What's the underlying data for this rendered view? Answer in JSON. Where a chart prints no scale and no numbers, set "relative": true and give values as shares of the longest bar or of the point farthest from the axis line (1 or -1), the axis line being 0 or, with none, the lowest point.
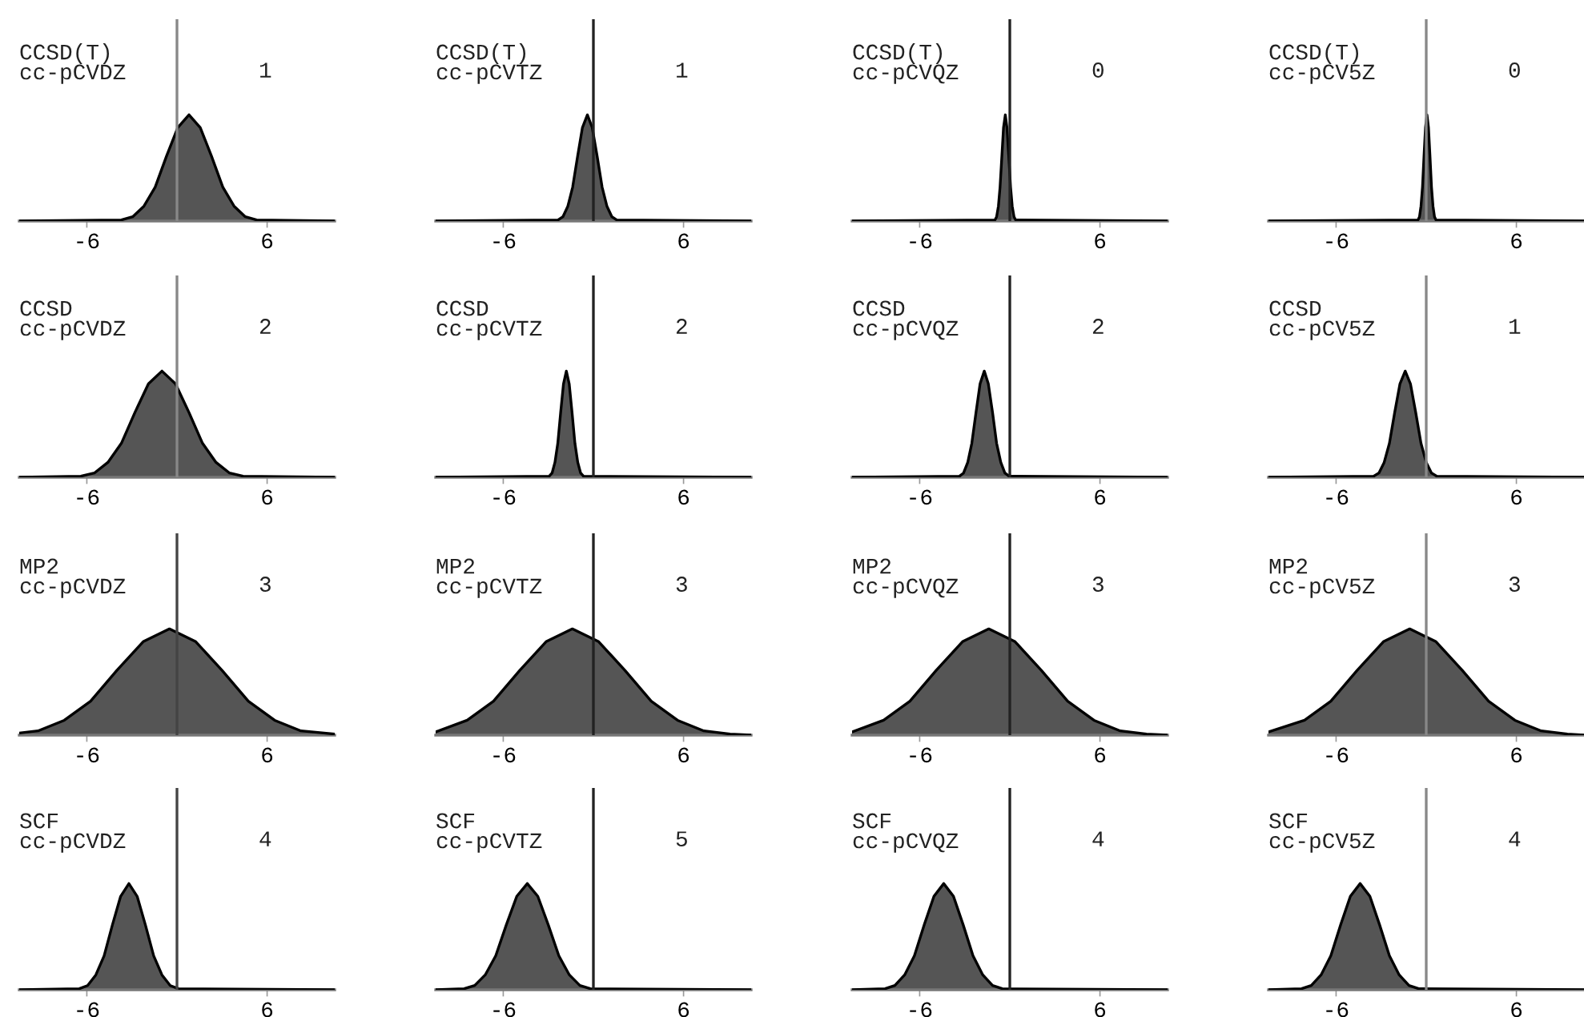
{
  "chart_data": [
    {
      "type": "area",
      "relative": true,
      "color": "#555555",
      "xlim": [
        -10.5,
        10.5
      ],
      "xticks": [
        -6,
        6
      ],
      "tick_labels": "x",
      "ref_lines": [
        {
          "axis": "x",
          "value": 0,
          "color": "#888888"
        }
      ],
      "annotations": [
        "CCSD(T)\ncc-pCVDZ",
        "1"
      ],
      "x": [
        -10.5,
        -3.7,
        -2.95,
        -2.2,
        -1.45,
        -0.7,
        0.05,
        0.8,
        1.55,
        2.3,
        3.05,
        3.8,
        4.55,
        5.3,
        10.5
      ],
      "values": [
        0,
        0.01,
        0.04,
        0.14,
        0.32,
        0.61,
        0.88,
        1,
        0.88,
        0.61,
        0.32,
        0.14,
        0.04,
        0.01,
        0
      ]
    },
    {
      "type": "area",
      "relative": true,
      "color": "#555555",
      "xlim": [
        -10.5,
        10.5
      ],
      "xticks": [
        -6,
        6
      ],
      "tick_labels": "x",
      "ref_lines": [
        {
          "axis": "x",
          "value": 0,
          "color": "#222222"
        }
      ],
      "annotations": [
        "CCSD(T)\ncc-pCVTZ",
        "1"
      ],
      "x": [
        -10.5,
        -2.35,
        -2.03,
        -1.7,
        -1.38,
        -1.05,
        -0.73,
        -0.4,
        -0.08,
        0.25,
        0.58,
        0.9,
        1.23,
        1.55,
        10.5
      ],
      "values": [
        0,
        0.01,
        0.04,
        0.14,
        0.32,
        0.61,
        0.88,
        1,
        0.88,
        0.61,
        0.32,
        0.14,
        0.04,
        0.01,
        0
      ]
    },
    {
      "type": "area",
      "relative": true,
      "color": "#555555",
      "xlim": [
        -10.5,
        10.5
      ],
      "xticks": [
        -6,
        6
      ],
      "tick_labels": "x",
      "ref_lines": [
        {
          "axis": "x",
          "value": 0,
          "color": "#222222"
        }
      ],
      "annotations": [
        "CCSD(T)\ncc-pCVQZ",
        "0"
      ],
      "x": [
        -10.5,
        -0.99,
        -0.88,
        -0.76,
        -0.65,
        -0.53,
        -0.42,
        -0.3,
        -0.19,
        -0.07,
        0.05,
        0.16,
        0.28,
        0.39,
        10.5
      ],
      "values": [
        0,
        0.01,
        0.04,
        0.14,
        0.32,
        0.61,
        0.88,
        1,
        0.88,
        0.61,
        0.32,
        0.14,
        0.04,
        0.01,
        0
      ]
    },
    {
      "type": "area",
      "relative": true,
      "color": "#555555",
      "xlim": [
        -10.5,
        10.5
      ],
      "xticks": [
        -6,
        6
      ],
      "tick_labels": "x",
      "ref_lines": [
        {
          "axis": "x",
          "value": 0,
          "color": "#888888"
        }
      ],
      "annotations": [
        "CCSD(T)\ncc-pCV5Z",
        "0"
      ],
      "x": [
        -10.5,
        -0.55,
        -0.45,
        -0.35,
        -0.25,
        -0.15,
        -0.05,
        0.05,
        0.15,
        0.25,
        0.35,
        0.45,
        0.55,
        0.65,
        10.5
      ],
      "values": [
        0,
        0.01,
        0.04,
        0.14,
        0.32,
        0.61,
        0.88,
        1,
        0.88,
        0.61,
        0.32,
        0.14,
        0.04,
        0.01,
        0
      ]
    },
    {
      "type": "area",
      "relative": true,
      "color": "#555555",
      "xlim": [
        -10.5,
        10.5
      ],
      "xticks": [
        -6,
        6
      ],
      "tick_labels": "x",
      "ref_lines": [
        {
          "axis": "x",
          "value": 0,
          "color": "#888888"
        }
      ],
      "annotations": [
        "CCSD\ncc-pCVDZ",
        "2"
      ],
      "x": [
        -10.5,
        -6.4,
        -5.5,
        -4.6,
        -3.7,
        -2.8,
        -1.9,
        -1.0,
        -0.1,
        0.8,
        1.7,
        2.6,
        3.5,
        4.4,
        10.5
      ],
      "values": [
        0,
        0.01,
        0.04,
        0.14,
        0.32,
        0.61,
        0.88,
        1,
        0.88,
        0.61,
        0.32,
        0.14,
        0.04,
        0.01,
        0
      ]
    },
    {
      "type": "area",
      "relative": true,
      "color": "#555555",
      "xlim": [
        -10.5,
        10.5
      ],
      "xticks": [
        -6,
        6
      ],
      "tick_labels": "x",
      "ref_lines": [
        {
          "axis": "x",
          "value": 0,
          "color": "#222222"
        }
      ],
      "annotations": [
        "CCSD\ncc-pCVTZ",
        "2"
      ],
      "x": [
        -10.5,
        -2.94,
        -2.75,
        -2.56,
        -2.37,
        -2.18,
        -1.99,
        -1.8,
        -1.61,
        -1.42,
        -1.23,
        -1.04,
        -0.85,
        -0.66,
        10.5
      ],
      "values": [
        0,
        0.01,
        0.04,
        0.14,
        0.32,
        0.61,
        0.88,
        1,
        0.88,
        0.61,
        0.32,
        0.14,
        0.04,
        0.01,
        0
      ]
    },
    {
      "type": "area",
      "relative": true,
      "color": "#555555",
      "xlim": [
        -10.5,
        10.5
      ],
      "xticks": [
        -6,
        6
      ],
      "tick_labels": "x",
      "ref_lines": [
        {
          "axis": "x",
          "value": 0,
          "color": "#222222"
        }
      ],
      "annotations": [
        "CCSD\ncc-pCVQZ",
        "2"
      ],
      "x": [
        -10.5,
        -3.35,
        -3.08,
        -2.8,
        -2.53,
        -2.25,
        -1.98,
        -1.7,
        -1.43,
        -1.15,
        -0.88,
        -0.6,
        -0.33,
        -0.05,
        10.5
      ],
      "values": [
        0,
        0.01,
        0.04,
        0.14,
        0.32,
        0.61,
        0.88,
        1,
        0.88,
        0.61,
        0.32,
        0.14,
        0.04,
        0.01,
        0
      ]
    },
    {
      "type": "area",
      "relative": true,
      "color": "#555555",
      "xlim": [
        -10.5,
        10.5
      ],
      "xticks": [
        -6,
        6
      ],
      "tick_labels": "x",
      "ref_lines": [
        {
          "axis": "x",
          "value": 0,
          "color": "#888888"
        }
      ],
      "annotations": [
        "CCSD\ncc-pCV5Z",
        "1"
      ],
      "x": [
        -10.5,
        -3.5,
        -3.15,
        -2.8,
        -2.45,
        -2.1,
        -1.75,
        -1.4,
        -1.05,
        -0.7,
        -0.35,
        0,
        0.35,
        0.7,
        10.5
      ],
      "values": [
        0,
        0.01,
        0.04,
        0.14,
        0.32,
        0.61,
        0.88,
        1,
        0.88,
        0.61,
        0.32,
        0.14,
        0.04,
        0.01,
        0
      ]
    },
    {
      "type": "area",
      "relative": true,
      "color": "#555555",
      "xlim": [
        -10.5,
        10.5
      ],
      "xticks": [
        -6,
        6
      ],
      "tick_labels": "x",
      "ref_lines": [
        {
          "axis": "x",
          "value": 0,
          "color": "#444444"
        }
      ],
      "annotations": [
        "MP2\ncc-pCVDZ",
        "3"
      ],
      "x": [
        -10.5,
        -9.25,
        -7.5,
        -5.75,
        -4.0,
        -2.25,
        -0.5,
        1.25,
        3.0,
        4.75,
        6.5,
        8.25,
        10.5
      ],
      "values": [
        0.02,
        0.04,
        0.14,
        0.32,
        0.61,
        0.88,
        1,
        0.88,
        0.61,
        0.32,
        0.14,
        0.04,
        0.01
      ]
    },
    {
      "type": "area",
      "relative": true,
      "color": "#555555",
      "xlim": [
        -10.5,
        10.5
      ],
      "xticks": [
        -6,
        6
      ],
      "tick_labels": "x",
      "ref_lines": [
        {
          "axis": "x",
          "value": 0,
          "color": "#222222"
        }
      ],
      "annotations": [
        "MP2\ncc-pCVTZ",
        "3"
      ],
      "x": [
        -10.5,
        -8.4,
        -6.65,
        -4.9,
        -3.15,
        -1.4,
        0.35,
        2.1,
        3.85,
        5.6,
        7.35,
        9.1,
        10.5
      ],
      "values": [
        0.03,
        0.14,
        0.32,
        0.61,
        0.88,
        1,
        0.88,
        0.61,
        0.32,
        0.14,
        0.04,
        0.01,
        0
      ]
    },
    {
      "type": "area",
      "relative": true,
      "color": "#555555",
      "xlim": [
        -10.5,
        10.5
      ],
      "xticks": [
        -6,
        6
      ],
      "tick_labels": "x",
      "ref_lines": [
        {
          "axis": "x",
          "value": 0,
          "color": "#222222"
        }
      ],
      "annotations": [
        "MP2\ncc-pCVQZ",
        "3"
      ],
      "x": [
        -10.5,
        -8.4,
        -6.65,
        -4.9,
        -3.15,
        -1.4,
        0.35,
        2.1,
        3.85,
        5.6,
        7.35,
        9.1,
        10.5
      ],
      "values": [
        0.03,
        0.14,
        0.32,
        0.61,
        0.88,
        1,
        0.88,
        0.61,
        0.32,
        0.14,
        0.04,
        0.01,
        0
      ]
    },
    {
      "type": "area",
      "relative": true,
      "color": "#555555",
      "xlim": [
        -10.5,
        10.5
      ],
      "xticks": [
        -6,
        6
      ],
      "tick_labels": "x",
      "ref_lines": [
        {
          "axis": "x",
          "value": 0,
          "color": "#888888"
        }
      ],
      "annotations": [
        "MP2\ncc-pCV5Z",
        "3"
      ],
      "x": [
        -10.5,
        -8.1,
        -6.35,
        -4.6,
        -2.85,
        -1.1,
        0.65,
        2.4,
        4.15,
        5.9,
        7.65,
        9.4,
        10.5
      ],
      "values": [
        0.03,
        0.14,
        0.32,
        0.61,
        0.88,
        1,
        0.88,
        0.61,
        0.32,
        0.14,
        0.04,
        0.01,
        0
      ]
    },
    {
      "type": "area",
      "relative": true,
      "color": "#555555",
      "xlim": [
        -10.5,
        10.5
      ],
      "xticks": [
        -6,
        6
      ],
      "tick_labels": "x",
      "ref_lines": [
        {
          "axis": "x",
          "value": 0,
          "color": "#444444"
        }
      ],
      "annotations": [
        "SCF\ncc-pCVDZ",
        "4"
      ],
      "x": [
        -10.5,
        -6.5,
        -5.95,
        -5.4,
        -4.85,
        -4.3,
        -3.75,
        -3.2,
        -2.65,
        -2.1,
        -1.55,
        -1.0,
        -0.45,
        0.1,
        10.5
      ],
      "values": [
        0,
        0.01,
        0.04,
        0.14,
        0.32,
        0.61,
        0.88,
        1,
        0.88,
        0.61,
        0.32,
        0.14,
        0.04,
        0.01,
        0
      ]
    },
    {
      "type": "area",
      "relative": true,
      "color": "#555555",
      "xlim": [
        -10.5,
        10.5
      ],
      "xticks": [
        -6,
        6
      ],
      "tick_labels": "x",
      "ref_lines": [
        {
          "axis": "x",
          "value": 0,
          "color": "#222222"
        }
      ],
      "annotations": [
        "SCF\ncc-pCVTZ",
        "5"
      ],
      "x": [
        -10.5,
        -8.6,
        -7.9,
        -7.2,
        -6.5,
        -5.8,
        -5.1,
        -4.4,
        -3.7,
        -3.0,
        -2.3,
        -1.6,
        -0.9,
        -0.2,
        10.5
      ],
      "values": [
        0,
        0.01,
        0.04,
        0.14,
        0.32,
        0.61,
        0.88,
        1,
        0.88,
        0.61,
        0.32,
        0.14,
        0.04,
        0.01,
        0
      ]
    },
    {
      "type": "area",
      "relative": true,
      "color": "#555555",
      "xlim": [
        -10.5,
        10.5
      ],
      "xticks": [
        -6,
        6
      ],
      "tick_labels": "x",
      "ref_lines": [
        {
          "axis": "x",
          "value": 0,
          "color": "#222222"
        }
      ],
      "annotations": [
        "SCF\ncc-pCVQZ",
        "4"
      ],
      "x": [
        -10.5,
        -8.3,
        -7.65,
        -7.0,
        -6.35,
        -5.7,
        -5.05,
        -4.4,
        -3.75,
        -3.1,
        -2.45,
        -1.8,
        -1.15,
        -0.5,
        10.5
      ],
      "values": [
        0,
        0.01,
        0.04,
        0.14,
        0.32,
        0.61,
        0.88,
        1,
        0.88,
        0.61,
        0.32,
        0.14,
        0.04,
        0.01,
        0
      ]
    },
    {
      "type": "area",
      "relative": true,
      "color": "#555555",
      "xlim": [
        -10.5,
        10.5
      ],
      "xticks": [
        -6,
        6
      ],
      "tick_labels": "x",
      "ref_lines": [
        {
          "axis": "x",
          "value": 0,
          "color": "#888888"
        }
      ],
      "annotations": [
        "SCF\ncc-pCV5Z",
        "4"
      ],
      "x": [
        -10.5,
        -8.3,
        -7.65,
        -7.0,
        -6.35,
        -5.7,
        -5.05,
        -4.4,
        -3.75,
        -3.1,
        -2.45,
        -1.8,
        -1.15,
        -0.5,
        10.5
      ],
      "values": [
        0,
        0.01,
        0.04,
        0.14,
        0.32,
        0.61,
        0.88,
        1,
        0.88,
        0.61,
        0.32,
        0.14,
        0.04,
        0.01,
        0
      ]
    }
  ]
}
